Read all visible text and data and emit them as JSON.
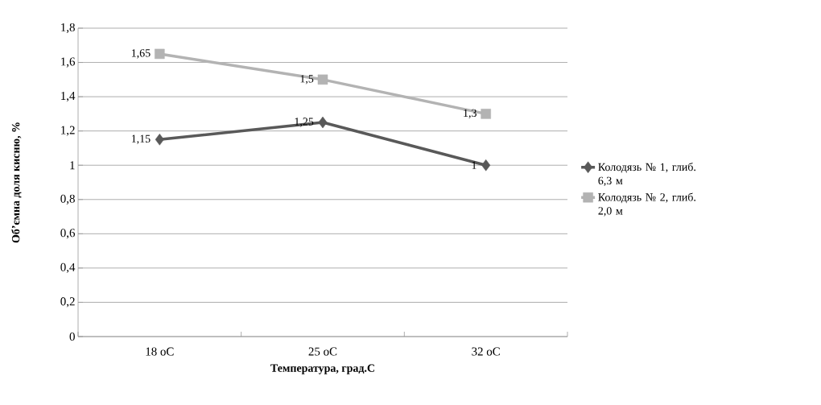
{
  "chart_data": {
    "type": "line",
    "xlabel": "Температура, град.С",
    "ylabel": "Об’ємна  доля кисню,  %",
    "categories": [
      "18 оС",
      "25 оС",
      "32 оС"
    ],
    "series": [
      {
        "name": "Колодязь № 1, глиб. 6,3 м",
        "color": "#595959",
        "marker": "diamond",
        "values": [
          1.15,
          1.25,
          1.0
        ],
        "value_labels": [
          "1,15",
          "1,25",
          "1"
        ]
      },
      {
        "name": "Колодязь № 2, глиб. 2,0 м",
        "color": "#b3b3b3",
        "marker": "square",
        "values": [
          1.65,
          1.5,
          1.3
        ],
        "value_labels": [
          "1,65",
          "1,5",
          "1,3"
        ]
      }
    ],
    "ylim": [
      0,
      1.8
    ],
    "yticks": [
      0,
      {
        "value": 0.2,
        "label": "0,2"
      },
      {
        "value": 0.4,
        "label": "0,4"
      },
      {
        "value": 0.6,
        "label": "0,6"
      },
      {
        "value": 0.8,
        "label": "0,8"
      },
      1,
      {
        "value": 1.2,
        "label": "1,2"
      },
      {
        "value": 1.4,
        "label": "1,4"
      },
      {
        "value": 1.6,
        "label": "1,6"
      },
      {
        "value": 1.8,
        "label": "1,8"
      }
    ],
    "grid": "y",
    "legend": "right"
  }
}
